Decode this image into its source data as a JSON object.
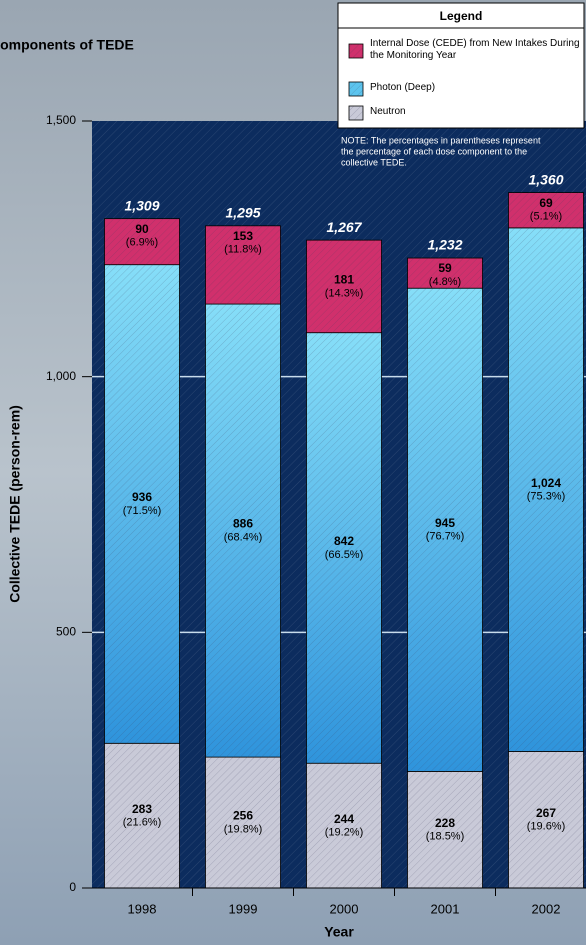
{
  "chart_data": {
    "type": "stacked-bar",
    "title": "Components of TEDE",
    "categories": [
      "1998",
      "1999",
      "2000",
      "2001",
      "2002"
    ],
    "series": [
      {
        "name": "Neutron",
        "color": "#c9cad8",
        "values": [
          283,
          256,
          244,
          228,
          267
        ],
        "percent_labels": [
          "(21.6%)",
          "(19.8%)",
          "(19.2%)",
          "(18.5%)",
          "(19.6%)"
        ]
      },
      {
        "name": "Photon (Deep)",
        "color": "#5cc4ee",
        "values": [
          936,
          886,
          842,
          945,
          1024
        ],
        "value_labels": [
          "936",
          "886",
          "842",
          "945",
          "1,024"
        ],
        "percent_labels": [
          "(71.5%)",
          "(68.4%)",
          "(66.5%)",
          "(76.7%)",
          "(75.3%)"
        ]
      },
      {
        "name": "Internal Dose (CEDE) from New Intakes During the Monitoring Year",
        "color": "#d0306c",
        "values": [
          90,
          153,
          181,
          59,
          69
        ],
        "percent_labels": [
          "(6.9%)",
          "(11.8%)",
          "(14.3%)",
          "(4.8%)",
          "(5.1%)"
        ]
      }
    ],
    "totals": [
      1309,
      1295,
      1267,
      1232,
      1360
    ],
    "total_labels": [
      "1,309",
      "1,295",
      "1,267",
      "1,232",
      "1,360"
    ],
    "ylim": [
      0,
      1500
    ],
    "yticks": [
      0,
      500,
      {
        "value": 1000,
        "label": "1,000"
      },
      {
        "value": 1500,
        "label": "1,500"
      }
    ],
    "grid": true,
    "xlabel": "Year",
    "ylabel": "Collective TEDE (person-rem)",
    "legend_title": "Legend",
    "legend_position": "top-right",
    "note": [
      "NOTE: The percentages in parentheses represent",
      "the percentage of each dose component to the",
      "collective TEDE."
    ]
  }
}
